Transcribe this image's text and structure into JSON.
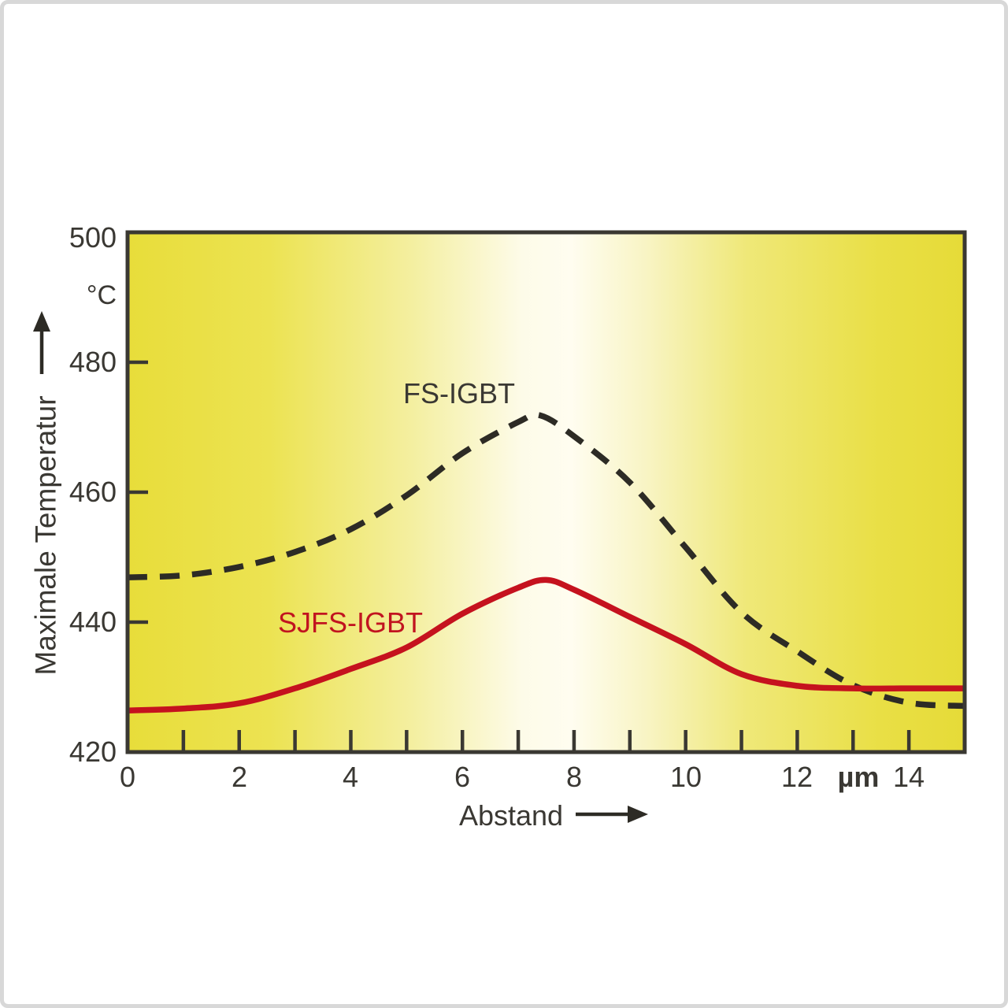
{
  "frame": {
    "background": "#ffffff",
    "border_color": "#d8d8d8"
  },
  "chart_data": {
    "type": "line",
    "title": "",
    "xlabel": "Abstand",
    "x_unit": "µm",
    "ylabel": "Maximale Temperatur",
    "y_unit": "°C",
    "xlim": [
      0,
      15
    ],
    "ylim": [
      420,
      500
    ],
    "grid": false,
    "legend_position": "inline-curve-labels",
    "x_tick_labels": [
      "0",
      "2",
      "4",
      "6",
      "8",
      "10",
      "12",
      "14"
    ],
    "x_tick_values": [
      0,
      2,
      4,
      6,
      8,
      10,
      12,
      14
    ],
    "x_minor_ticks": [
      1,
      2,
      3,
      4,
      5,
      6,
      7,
      8,
      9,
      10,
      11,
      12,
      13,
      14
    ],
    "y_tick_labels": [
      "500",
      "480",
      "460",
      "440",
      "420"
    ],
    "y_tick_values": [
      500,
      480,
      460,
      440,
      420
    ],
    "y_inner_ticks": [
      480,
      460,
      440
    ],
    "axis_color": "#3a3832",
    "text_color": "#3a3833",
    "plot_gradient": [
      {
        "offset": 0.0,
        "color": "#e8dd3a"
      },
      {
        "offset": 0.17,
        "color": "#ece352"
      },
      {
        "offset": 0.34,
        "color": "#f4efa0"
      },
      {
        "offset": 0.47,
        "color": "#fdfbe8"
      },
      {
        "offset": 0.53,
        "color": "#fffdf0"
      },
      {
        "offset": 0.62,
        "color": "#f8f4c4"
      },
      {
        "offset": 0.74,
        "color": "#efe878"
      },
      {
        "offset": 0.9,
        "color": "#e9df45"
      },
      {
        "offset": 1.0,
        "color": "#e6db38"
      }
    ],
    "series": [
      {
        "name": "FS-IGBT",
        "style": "dashed",
        "color": "#2d2b25",
        "label_color": "#3a3833",
        "points": [
          [
            0,
            446.9
          ],
          [
            1,
            447.2
          ],
          [
            2,
            448.5
          ],
          [
            3,
            450.8
          ],
          [
            4,
            454.3
          ],
          [
            5,
            459.5
          ],
          [
            6,
            466.0
          ],
          [
            7,
            470.8
          ],
          [
            7.4,
            471.8
          ],
          [
            8,
            468.6
          ],
          [
            9,
            461.5
          ],
          [
            10,
            451.5
          ],
          [
            11,
            441.5
          ],
          [
            12,
            435.5
          ],
          [
            13,
            430.3
          ],
          [
            14,
            427.6
          ],
          [
            15,
            427.1
          ]
        ]
      },
      {
        "name": "SJFS-IGBT",
        "style": "solid",
        "color": "#c5121e",
        "label_color": "#c11420",
        "points": [
          [
            0,
            426.4
          ],
          [
            1,
            426.7
          ],
          [
            2,
            427.5
          ],
          [
            3,
            429.8
          ],
          [
            4,
            432.8
          ],
          [
            5,
            436.1
          ],
          [
            6,
            441.3
          ],
          [
            7,
            445.3
          ],
          [
            7.5,
            446.5
          ],
          [
            8,
            445.0
          ],
          [
            9,
            440.8
          ],
          [
            10,
            436.6
          ],
          [
            11,
            432.0
          ],
          [
            12,
            430.2
          ],
          [
            13,
            429.8
          ],
          [
            14,
            429.8
          ],
          [
            15,
            429.8
          ]
        ]
      }
    ]
  }
}
